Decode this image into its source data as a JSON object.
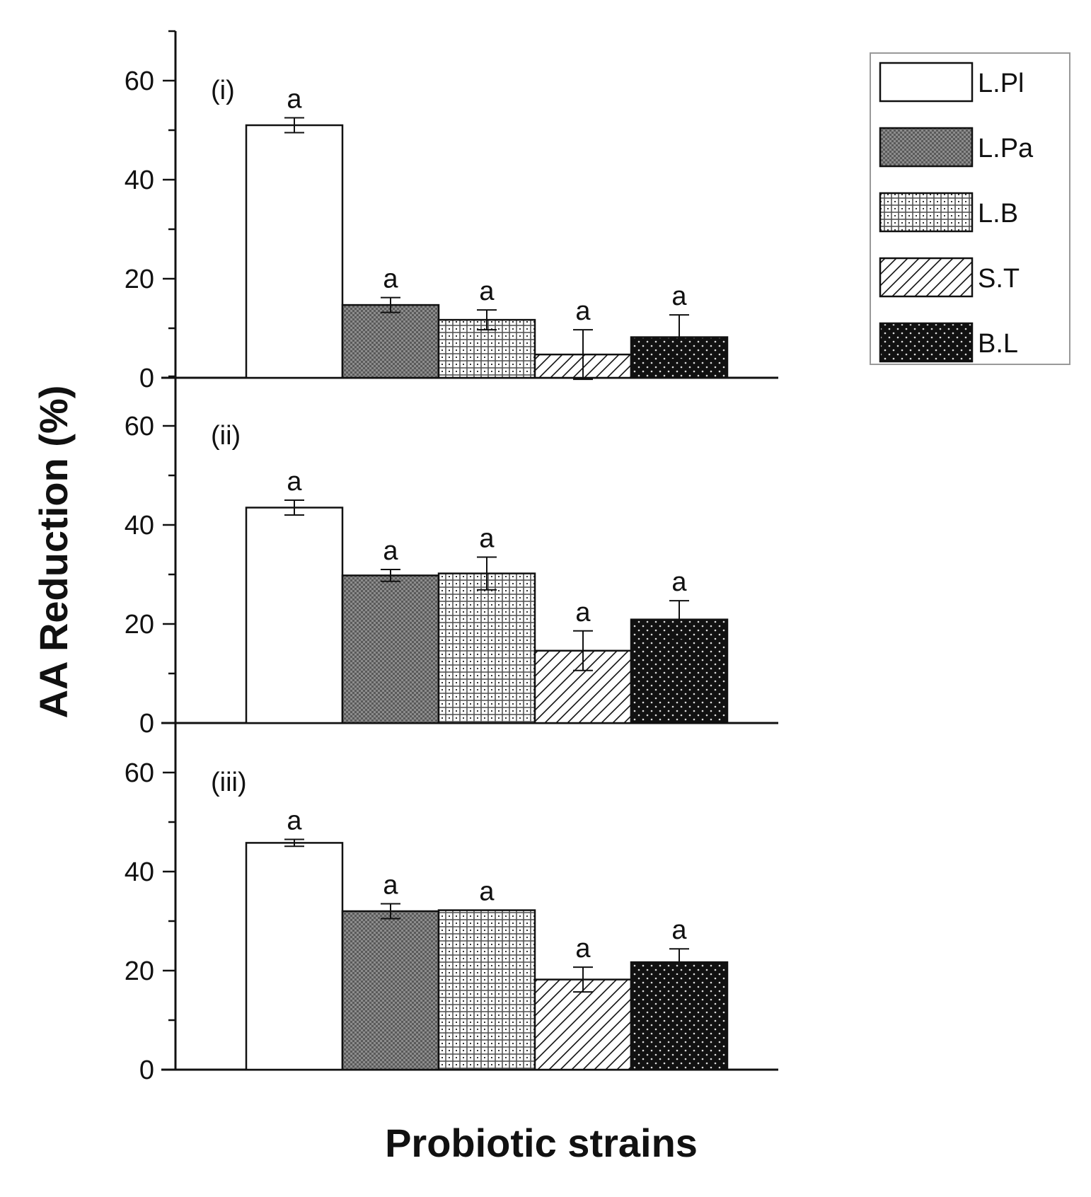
{
  "chart_data": {
    "type": "bar",
    "ylabel": "AA Reduction (%)",
    "xlabel": "Probiotic strains",
    "ylim": [
      0,
      70
    ],
    "yticks": [
      0,
      20,
      40,
      60
    ],
    "categories": [
      "L.Pl",
      "L.Pa",
      "L.B",
      "S.T",
      "B.L"
    ],
    "colors": {
      "L.Pl": "#ffffff",
      "L.Pa": "#777777",
      "L.B": "#d8d8d8",
      "S.T": "#ffffff",
      "B.L": "#111111"
    },
    "legend": {
      "position": "top-right",
      "entries": [
        "L.Pl",
        "L.Pa",
        "L.B",
        "S.T",
        "B.L"
      ]
    },
    "panels": [
      {
        "label": "(i)",
        "values": [
          51,
          14.7,
          11.7,
          4.7,
          8.2
        ],
        "errors": [
          1.5,
          1.5,
          2,
          5,
          4.5
        ],
        "significance": [
          "a",
          "a",
          "a",
          "a",
          "a"
        ]
      },
      {
        "label": "(ii)",
        "values": [
          43.5,
          29.8,
          30.2,
          14.6,
          20.9
        ],
        "errors": [
          1.5,
          1.2,
          3.3,
          4,
          3.8
        ],
        "significance": [
          "a",
          "a",
          "a",
          "a",
          "a"
        ]
      },
      {
        "label": "(iii)",
        "values": [
          45.8,
          32,
          32.2,
          18.2,
          21.7
        ],
        "errors": [
          0.7,
          1.5,
          0,
          2.5,
          2.7
        ],
        "significance": [
          "a",
          "a",
          "a",
          "a",
          "a"
        ]
      }
    ]
  }
}
